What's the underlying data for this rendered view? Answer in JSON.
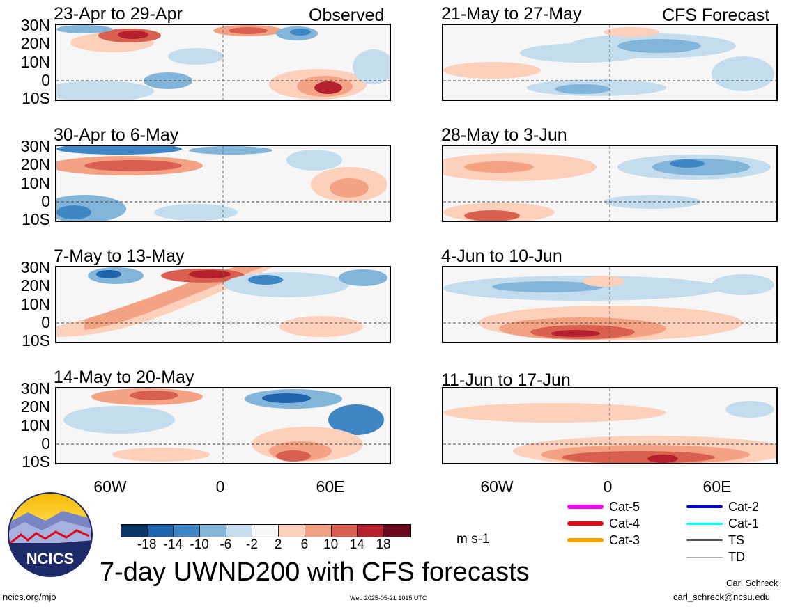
{
  "observed_label": "Observed",
  "forecast_label": "CFS Forecast",
  "panels_observed": [
    {
      "title": "23-Apr to 29-Apr"
    },
    {
      "title": "30-Apr to 6-May"
    },
    {
      "title": "7-May to 13-May"
    },
    {
      "title": "14-May to 20-May"
    }
  ],
  "panels_forecast": [
    {
      "title": "21-May to 27-May"
    },
    {
      "title": "28-May to 3-Jun"
    },
    {
      "title": "4-Jun to 10-Jun"
    },
    {
      "title": "11-Jun to 17-Jun"
    }
  ],
  "lat_labels": [
    "30N",
    "20N",
    "10N",
    "0",
    "10S"
  ],
  "lon_labels": [
    "60W",
    "0",
    "60E"
  ],
  "colorbar": {
    "ticks": [
      "-18",
      "-14",
      "-10",
      "-6",
      "-2",
      "2",
      "6",
      "10",
      "14",
      "18"
    ],
    "colors": [
      "#0a3468",
      "#1f63ad",
      "#3f86c4",
      "#82b5d9",
      "#c4ddee",
      "#f7f7f7",
      "#fcd0bb",
      "#f3a284",
      "#d9604f",
      "#b4202d",
      "#6b0a1e"
    ],
    "units": "m s-1"
  },
  "legend": [
    {
      "label": "Cat-5",
      "color": "#ff00ff"
    },
    {
      "label": "Cat-4",
      "color": "#e8000b"
    },
    {
      "label": "Cat-3",
      "color": "#f5a400"
    },
    {
      "label": "Cat-2",
      "color": "#0000cc"
    },
    {
      "label": "Cat-1",
      "color": "#00ffff"
    },
    {
      "label": "TS",
      "color": "#555555"
    },
    {
      "label": "TD",
      "color": "#aaaaaa"
    }
  ],
  "title": "7-day UWND200 with CFS forecasts",
  "logo_text": "NCICS",
  "footer_left": "ncics.org/mjo",
  "footer_center": "Wed 2025-05-21 1015 UTC",
  "author": "Carl Schreck",
  "email": "carl_schreck@ncsu.edu"
}
